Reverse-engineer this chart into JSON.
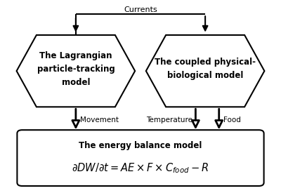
{
  "background_color": "#ffffff",
  "currents_label": "Currents",
  "left_box_label": "The Lagrangian\nparticle-tracking\nmodel",
  "right_box_label": "The coupled physical-\nbiological model",
  "bottom_box_title": "The energy balance model",
  "bottom_box_formula": "$\\partial DW / \\partial t = AE \\times F \\times C_{food} - R$",
  "movement_label": "Movement",
  "temperature_label": "Temperature",
  "food_label": "Food",
  "box_edge_color": "#000000",
  "box_fill_color": "#ffffff",
  "arrow_color": "#000000",
  "text_color": "#000000",
  "title_fontsize": 8.5,
  "label_fontsize": 7.5,
  "formula_fontsize": 10.5
}
